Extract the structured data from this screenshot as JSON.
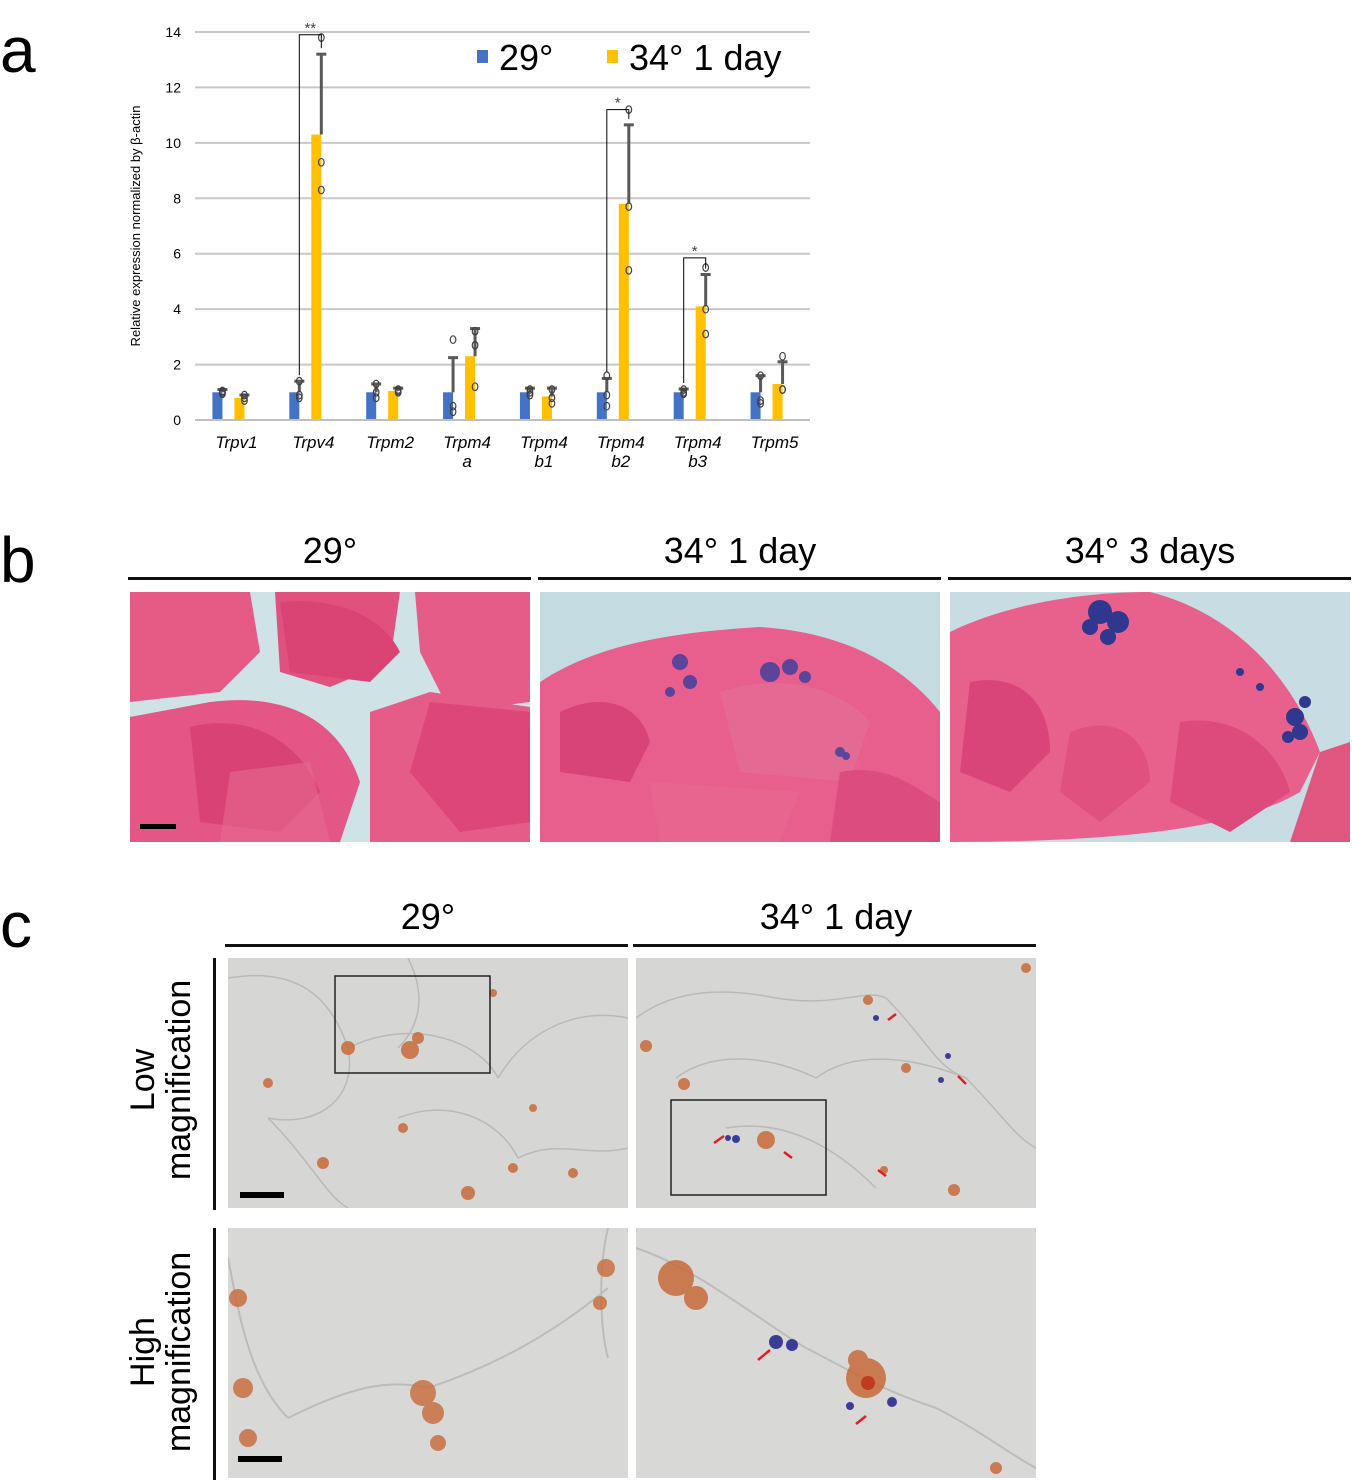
{
  "panel_a": {
    "letter": "a",
    "chart_data": {
      "type": "bar",
      "categories": [
        "Trpv1",
        "Trpv4",
        "Trpm2",
        "Trpm4 a",
        "Trpm4 b1",
        "Trpm4 b2",
        "Trpm4 b3",
        "Trpm5"
      ],
      "category_lines": [
        [
          "Trpv1"
        ],
        [
          "Trpv4"
        ],
        [
          "Trpm2"
        ],
        [
          "Trpm4",
          "a"
        ],
        [
          "Trpm4",
          "b1"
        ],
        [
          "Trpm4",
          "b2"
        ],
        [
          "Trpm4",
          "b3"
        ],
        [
          "Trpm5"
        ]
      ],
      "series": [
        {
          "name": "29°",
          "color": "#4472c4",
          "values": [
            1.0,
            1.0,
            1.0,
            1.0,
            1.0,
            1.0,
            1.0,
            1.0
          ],
          "errors": [
            0.1,
            0.4,
            0.3,
            1.25,
            0.15,
            0.5,
            0.12,
            0.6
          ],
          "points": [
            [
              1.05,
              1.0,
              0.95
            ],
            [
              1.4,
              0.9,
              0.8
            ],
            [
              1.3,
              1.0,
              0.8
            ],
            [
              2.9,
              0.5,
              0.3
            ],
            [
              1.1,
              1.0,
              0.9
            ],
            [
              1.6,
              0.9,
              0.5
            ],
            [
              1.1,
              1.0,
              0.95
            ],
            [
              1.6,
              0.7,
              0.6
            ]
          ]
        },
        {
          "name": "34° 1 day",
          "color": "#ffc000",
          "values": [
            0.8,
            10.3,
            1.05,
            2.3,
            0.85,
            7.8,
            4.1,
            1.3
          ],
          "errors": [
            0.1,
            2.9,
            0.1,
            1.0,
            0.3,
            2.85,
            1.15,
            0.8
          ],
          "points": [
            [
              0.9,
              0.8,
              0.7
            ],
            [
              13.8,
              9.3,
              8.3
            ],
            [
              1.1,
              1.05,
              1.0
            ],
            [
              3.2,
              2.7,
              1.2
            ],
            [
              1.1,
              0.8,
              0.6
            ],
            [
              11.2,
              7.7,
              5.4
            ],
            [
              5.5,
              4.0,
              3.1
            ],
            [
              2.3,
              1.1,
              1.1
            ]
          ]
        }
      ],
      "significance": [
        {
          "category": "Trpv4",
          "label": "**",
          "height": 13.9
        },
        {
          "category": "Trpm4 b2",
          "label": "*",
          "height": 11.2
        },
        {
          "category": "Trpm4 b3",
          "label": "*",
          "height": 5.85
        }
      ],
      "ylabel": "Relative expression normalized by β-actin",
      "xlabel": "",
      "ylim": [
        0,
        14
      ],
      "yticks": [
        0,
        2,
        4,
        6,
        8,
        10,
        12,
        14
      ],
      "grid": true,
      "legend_position": "top-right"
    }
  },
  "panel_b": {
    "letter": "b",
    "columns": [
      "29°",
      "34° 1 day",
      "34° 3 days"
    ]
  },
  "panel_c": {
    "letter": "c",
    "columns": [
      "29°",
      "34° 1 day"
    ],
    "rows": [
      [
        "Low",
        "magnification"
      ],
      [
        "High",
        "magnification"
      ]
    ]
  },
  "colors": {
    "he_pink": "#e45f8a",
    "he_background": "#c6dde2",
    "xgal_blue": "#3a3e9e",
    "ihc_brown": "#c76a3a",
    "dic_gray": "#d3d3d1",
    "arrow_red": "#e02020"
  }
}
